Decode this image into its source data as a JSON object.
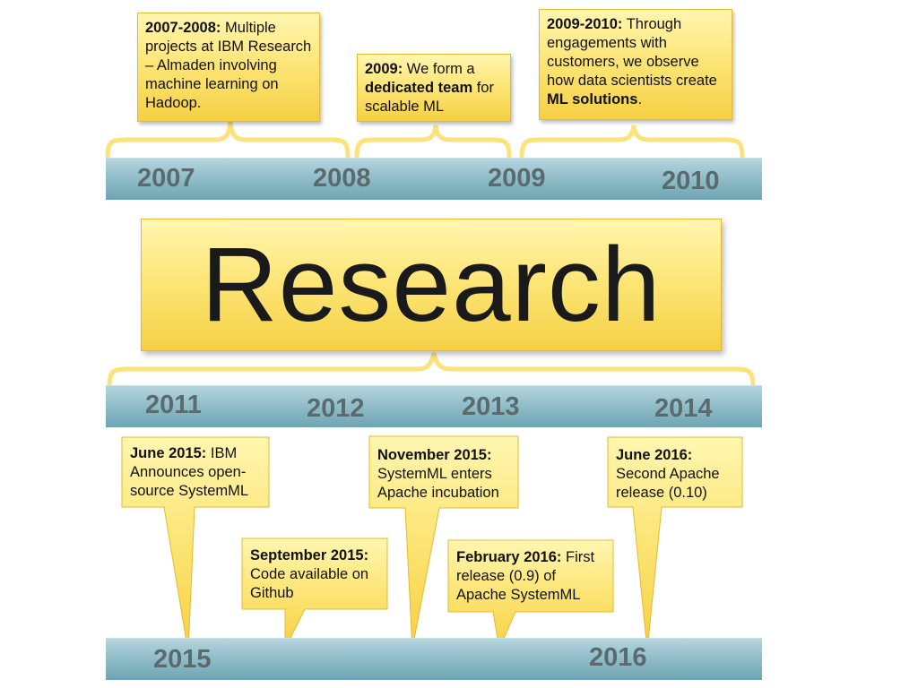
{
  "colors": {
    "note_fill": "#fde679",
    "bracket": "#fbe27a",
    "bar": "#8fbcc8",
    "year_text": "#5a6b6e"
  },
  "top_years": [
    "2007",
    "2008",
    "2009",
    "2010"
  ],
  "mid_years": [
    "2011",
    "2012",
    "2013",
    "2014"
  ],
  "bottom_years": [
    "2015",
    "2016"
  ],
  "research_label": "Research",
  "top_notes": [
    {
      "b1": "2007-2008:",
      "t1": " Multiple projects at IBM Research – Almaden involving machine learning on Hadoop."
    },
    {
      "b1": "2009:",
      "t1": " We form a ",
      "b2": "dedicated team",
      "t2": " for scalable ML"
    },
    {
      "b1": "2009-2010:",
      "t1": " Through engagements with customers, we observe how data scientists create ",
      "b2": "ML solutions",
      "t2": "."
    }
  ],
  "callouts": [
    {
      "title": "June 2015:",
      "text": " IBM Announces open-source SystemML"
    },
    {
      "title": "September 2015:",
      "text": " Code available on Github"
    },
    {
      "title": "November 2015:",
      "text": " SystemML enters Apache incubation"
    },
    {
      "title": "February 2016:",
      "text": " First release (0.9) of Apache SystemML"
    },
    {
      "title": "June 2016:",
      "text": " Second Apache release (0.10)"
    }
  ]
}
